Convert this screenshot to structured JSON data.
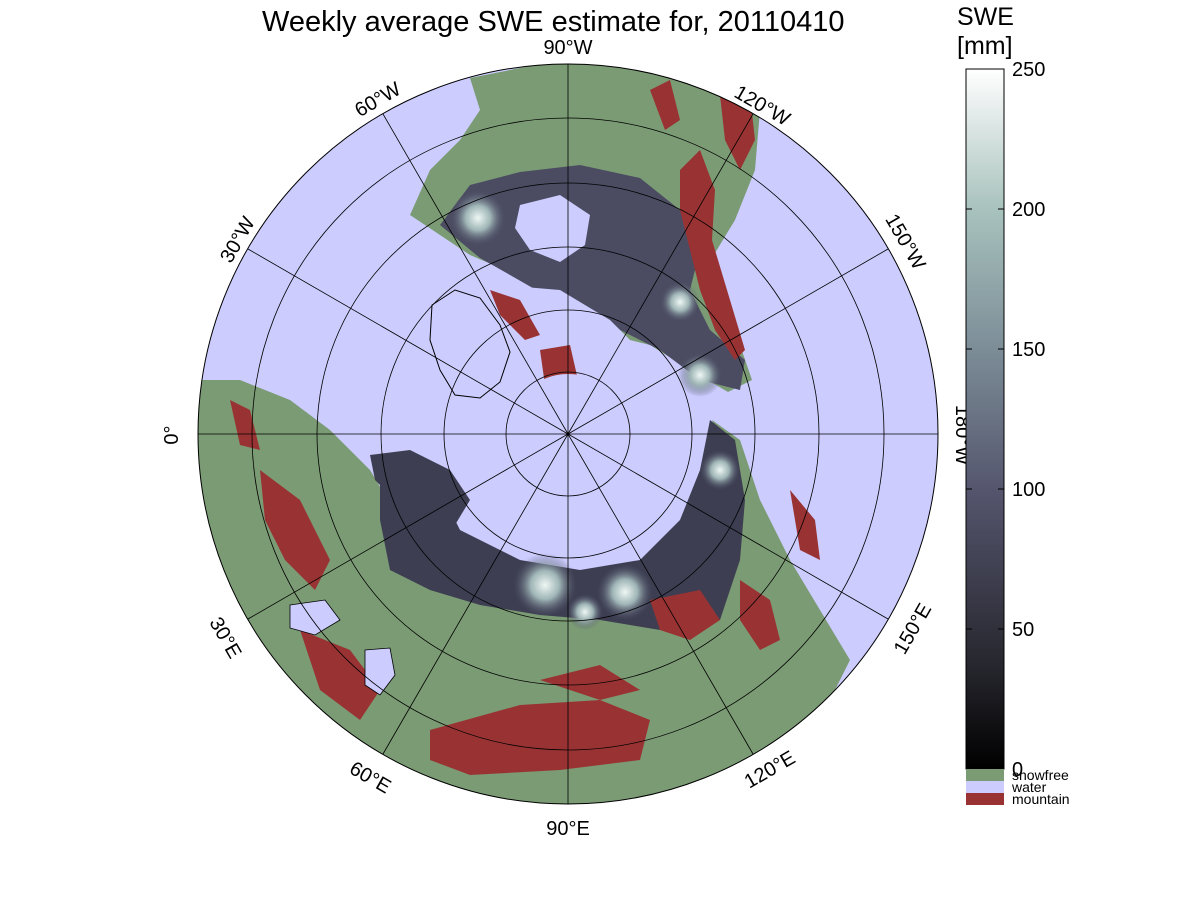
{
  "title": "Weekly average SWE estimate for, 20110410",
  "colorbar": {
    "title_line1": "SWE",
    "title_line2": "[mm]",
    "min": 0,
    "max": 250,
    "ticks": [
      "0",
      "50",
      "100",
      "150",
      "200",
      "250"
    ],
    "categories": [
      {
        "label": "snowfree",
        "color": "#7b9b74"
      },
      {
        "label": "water",
        "color": "#ccccff"
      },
      {
        "label": "mountain",
        "color": "#993333"
      }
    ]
  },
  "map": {
    "projection": "polar stereographic, North Pole centered",
    "longitude_labels": {
      "lon_90W": "90°W",
      "lon_120W": "120°W",
      "lon_150W": "150°W",
      "lon_180W": "180°W",
      "lon_150E": "150°E",
      "lon_120E": "120°E",
      "lon_90E": "90°E",
      "lon_60E": "60°E",
      "lon_30E": "30°E",
      "lon_0": "0°",
      "lon_30W": "30°W",
      "lon_60W": "60°W"
    },
    "colors": {
      "water": "#ccccff",
      "snowfree": "#7b9b74",
      "mountain": "#993333",
      "snow_low": "#1e1e28",
      "snow_mid": "#4a4a60",
      "snow_high": "#e8f4f0"
    }
  }
}
